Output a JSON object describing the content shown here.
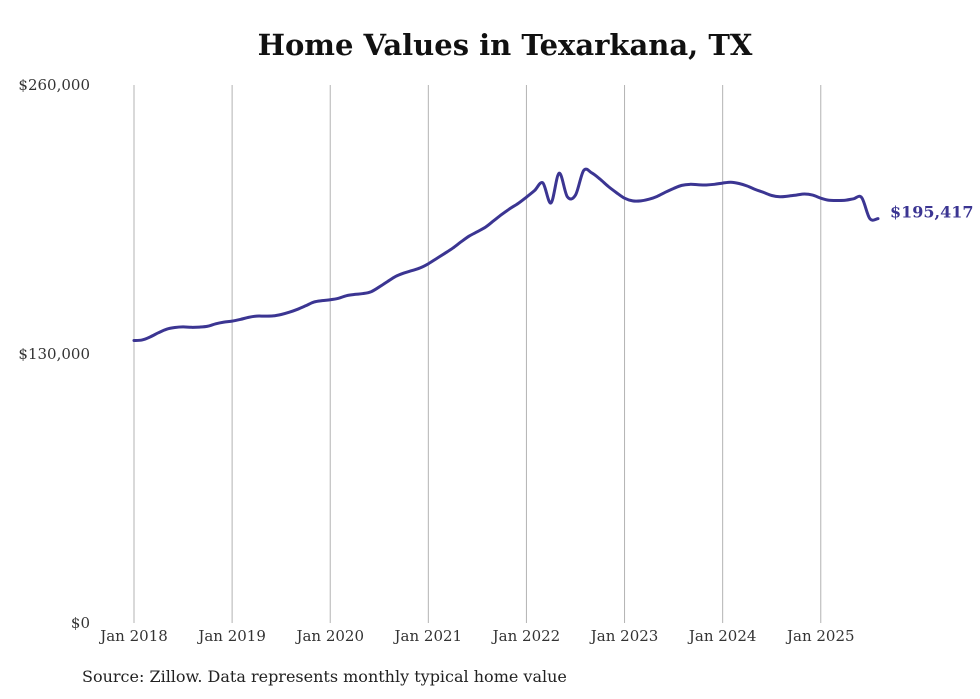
{
  "chart_data": {
    "type": "line",
    "title": "Home Values in Texarkana, TX",
    "xlabel": "",
    "ylabel": "",
    "ylim": [
      0,
      260000
    ],
    "xlim": [
      "2018-01",
      "2025-08"
    ],
    "y_ticks": [
      {
        "value": 0,
        "label": "$0"
      },
      {
        "value": 130000,
        "label": "$130,000"
      },
      {
        "value": 260000,
        "label": "$260,000"
      }
    ],
    "x_ticks": [
      {
        "value": "2018-01",
        "label": "Jan 2018"
      },
      {
        "value": "2019-01",
        "label": "Jan 2019"
      },
      {
        "value": "2020-01",
        "label": "Jan 2020"
      },
      {
        "value": "2021-01",
        "label": "Jan 2021"
      },
      {
        "value": "2022-01",
        "label": "Jan 2022"
      },
      {
        "value": "2023-01",
        "label": "Jan 2023"
      },
      {
        "value": "2024-01",
        "label": "Jan 2024"
      },
      {
        "value": "2025-01",
        "label": "Jan 2025"
      }
    ],
    "grid": {
      "vertical": true,
      "horizontal": false
    },
    "series": [
      {
        "color": "#3b3592",
        "end_label": "$195,417",
        "x": [
          "2018-01",
          "2018-02",
          "2018-03",
          "2018-04",
          "2018-05",
          "2018-06",
          "2018-07",
          "2018-08",
          "2018-09",
          "2018-10",
          "2018-11",
          "2018-12",
          "2019-01",
          "2019-02",
          "2019-03",
          "2019-04",
          "2019-05",
          "2019-06",
          "2019-07",
          "2019-08",
          "2019-09",
          "2019-10",
          "2019-11",
          "2019-12",
          "2020-01",
          "2020-02",
          "2020-03",
          "2020-04",
          "2020-05",
          "2020-06",
          "2020-07",
          "2020-08",
          "2020-09",
          "2020-10",
          "2020-11",
          "2020-12",
          "2021-01",
          "2021-02",
          "2021-03",
          "2021-04",
          "2021-05",
          "2021-06",
          "2021-07",
          "2021-08",
          "2021-09",
          "2021-10",
          "2021-11",
          "2021-12",
          "2022-01",
          "2022-02",
          "2022-03",
          "2022-04",
          "2022-05",
          "2022-06",
          "2022-07",
          "2022-08",
          "2022-09",
          "2022-10",
          "2022-11",
          "2022-12",
          "2023-01",
          "2023-02",
          "2023-03",
          "2023-04",
          "2023-05",
          "2023-06",
          "2023-07",
          "2023-08",
          "2023-09",
          "2023-10",
          "2023-11",
          "2023-12",
          "2024-01",
          "2024-02",
          "2024-03",
          "2024-04",
          "2024-05",
          "2024-06",
          "2024-07",
          "2024-08",
          "2024-09",
          "2024-10",
          "2024-11",
          "2024-12",
          "2025-01",
          "2025-02",
          "2025-03",
          "2025-04",
          "2025-05",
          "2025-06",
          "2025-07",
          "2025-08"
        ],
        "values": [
          136500,
          136800,
          138300,
          140300,
          142000,
          142800,
          143100,
          142900,
          143000,
          143400,
          144600,
          145400,
          145900,
          146700,
          147700,
          148300,
          148300,
          148400,
          149100,
          150200,
          151600,
          153300,
          155100,
          155800,
          156200,
          156900,
          158200,
          158800,
          159200,
          160100,
          162400,
          165000,
          167500,
          169100,
          170300,
          171600,
          173600,
          176100,
          178600,
          181200,
          184200,
          187000,
          189100,
          191300,
          194400,
          197500,
          200300,
          202800,
          205800,
          209000,
          212700,
          203000,
          217400,
          206000,
          206800,
          218700,
          217500,
          214500,
          211000,
          208000,
          205300,
          204000,
          204000,
          204800,
          206200,
          208200,
          210000,
          211500,
          212000,
          211800,
          211700,
          212000,
          212600,
          213000,
          212400,
          211200,
          209500,
          208100,
          206600,
          206000,
          206300,
          206800,
          207300,
          206800,
          205300,
          204300,
          204200,
          204300,
          205000,
          205600,
          195417,
          195417
        ]
      }
    ]
  },
  "source_note": "Source: Zillow. Data represents monthly typical home value"
}
